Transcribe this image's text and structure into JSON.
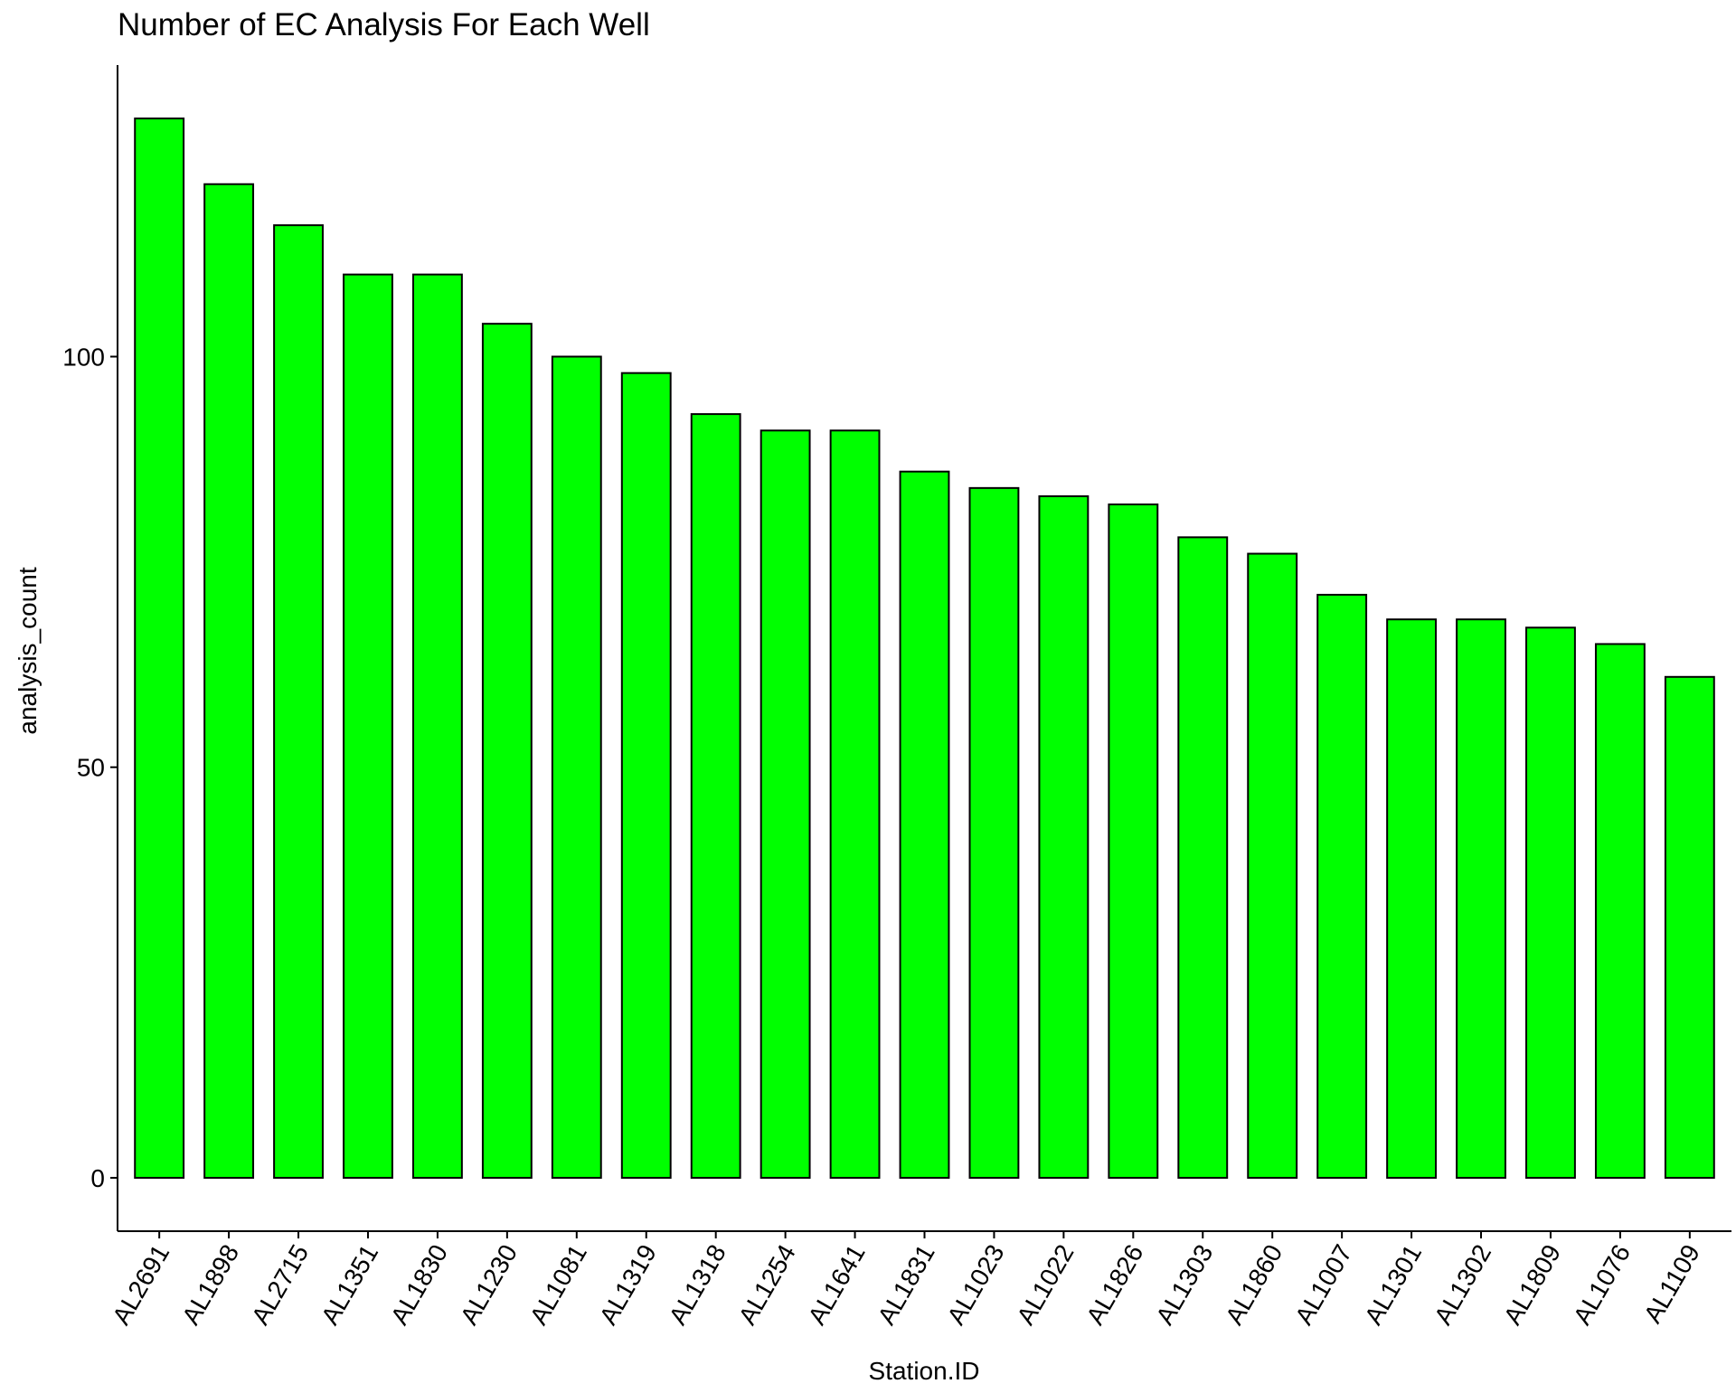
{
  "chart_data": {
    "type": "bar",
    "title": "Number of EC Analysis For Each Well",
    "xlabel": "Station.ID",
    "ylabel": "analysis_count",
    "categories": [
      "AL2691",
      "AL1898",
      "AL2715",
      "AL1351",
      "AL1830",
      "AL1230",
      "AL1081",
      "AL1319",
      "AL1318",
      "AL1254",
      "AL1641",
      "AL1831",
      "AL1023",
      "AL1022",
      "AL1826",
      "AL1303",
      "AL1860",
      "AL1007",
      "AL1301",
      "AL1302",
      "AL1809",
      "AL1076",
      "AL1109"
    ],
    "values": [
      129,
      121,
      116,
      110,
      110,
      104,
      100,
      98,
      93,
      91,
      91,
      86,
      84,
      83,
      82,
      78,
      76,
      71,
      68,
      68,
      67,
      65,
      61
    ],
    "yticks": [
      0,
      50,
      100
    ],
    "ylim": [
      -6.5,
      135.5
    ],
    "grid": false,
    "legend": "none",
    "x_tick_rotation": "-60deg",
    "colors": {
      "bar_fill": "#00FF00",
      "bar_stroke": "#000000",
      "axis": "#000000"
    }
  }
}
